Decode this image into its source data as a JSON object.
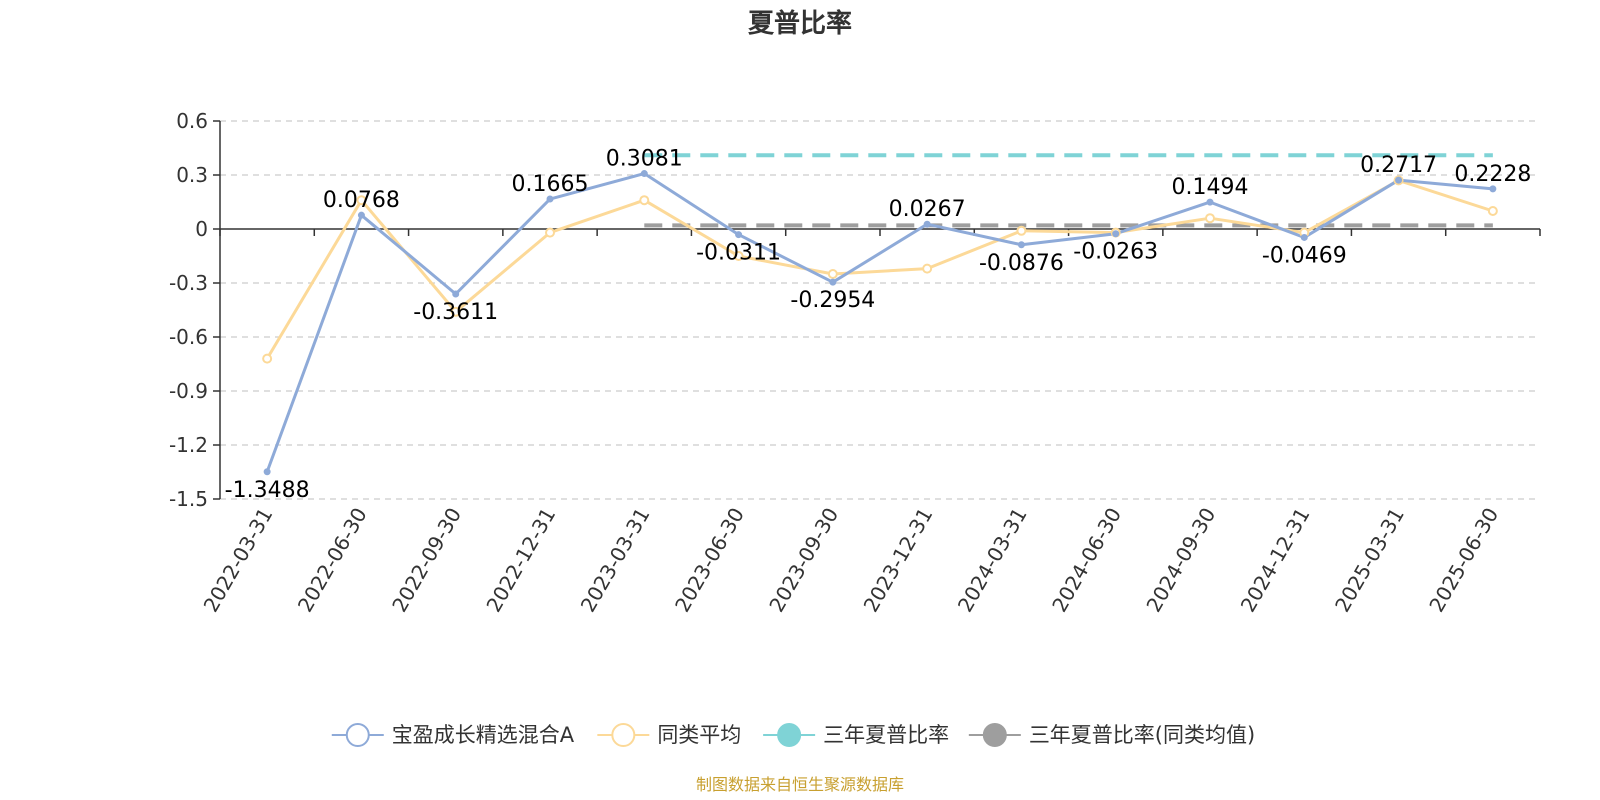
{
  "colors": {
    "fund": "#8eaad8",
    "peer": "#fcd998",
    "three_year": "#7fd3d6",
    "three_year_peer": "#9e9e9e",
    "source": "#c8a030"
  },
  "source_note": "制图数据来自恒生聚源数据库",
  "chart_data": {
    "type": "line",
    "title": "夏普比率",
    "xlabel": "",
    "ylabel": "",
    "ylim": [
      -1.5,
      0.6
    ],
    "yticks": [
      "0.6",
      "0.3",
      "0",
      "-0.3",
      "-0.6",
      "-0.9",
      "-1.2",
      "-1.5"
    ],
    "ytick_values": [
      0.6,
      0.3,
      0,
      -0.3,
      -0.6,
      -0.9,
      -1.2,
      -1.5
    ],
    "grid": true,
    "legend_position": "bottom-center",
    "categories": [
      "2022-03-31",
      "2022-06-30",
      "2022-09-30",
      "2022-12-31",
      "2023-03-31",
      "2023-06-30",
      "2023-09-30",
      "2023-12-31",
      "2024-03-31",
      "2024-06-30",
      "2024-09-30",
      "2024-12-31",
      "2025-03-31",
      "2025-06-30"
    ],
    "series": [
      {
        "name": "宝盈成长精选混合A",
        "values": [
          -1.3488,
          0.0768,
          -0.3611,
          0.1665,
          0.3081,
          -0.0311,
          -0.2954,
          0.0267,
          -0.0876,
          -0.0263,
          0.1494,
          -0.0469,
          0.2717,
          0.2228
        ],
        "labels": [
          "-1.3488",
          "0.0768",
          "-0.3611",
          "0.1665",
          "0.3081",
          "-0.0311",
          "-0.2954",
          "0.0267",
          "-0.0876",
          "-0.0263",
          "0.1494",
          "-0.0469",
          "0.2717",
          "0.2228"
        ]
      },
      {
        "name": "同类平均",
        "values": [
          -0.72,
          0.16,
          -0.46,
          -0.02,
          0.16,
          -0.15,
          -0.25,
          -0.22,
          -0.01,
          -0.02,
          0.06,
          -0.02,
          0.27,
          0.1
        ]
      },
      {
        "name": "三年夏普比率",
        "values": [
          null,
          null,
          null,
          null,
          0.41,
          0.41,
          0.41,
          0.41,
          0.41,
          0.41,
          0.41,
          0.41,
          0.41,
          0.41
        ]
      },
      {
        "name": "三年夏普比率(同类均值)",
        "values": [
          null,
          null,
          null,
          null,
          0.02,
          0.02,
          0.02,
          0.02,
          0.02,
          0.02,
          0.02,
          0.02,
          0.02,
          0.02
        ]
      }
    ]
  }
}
